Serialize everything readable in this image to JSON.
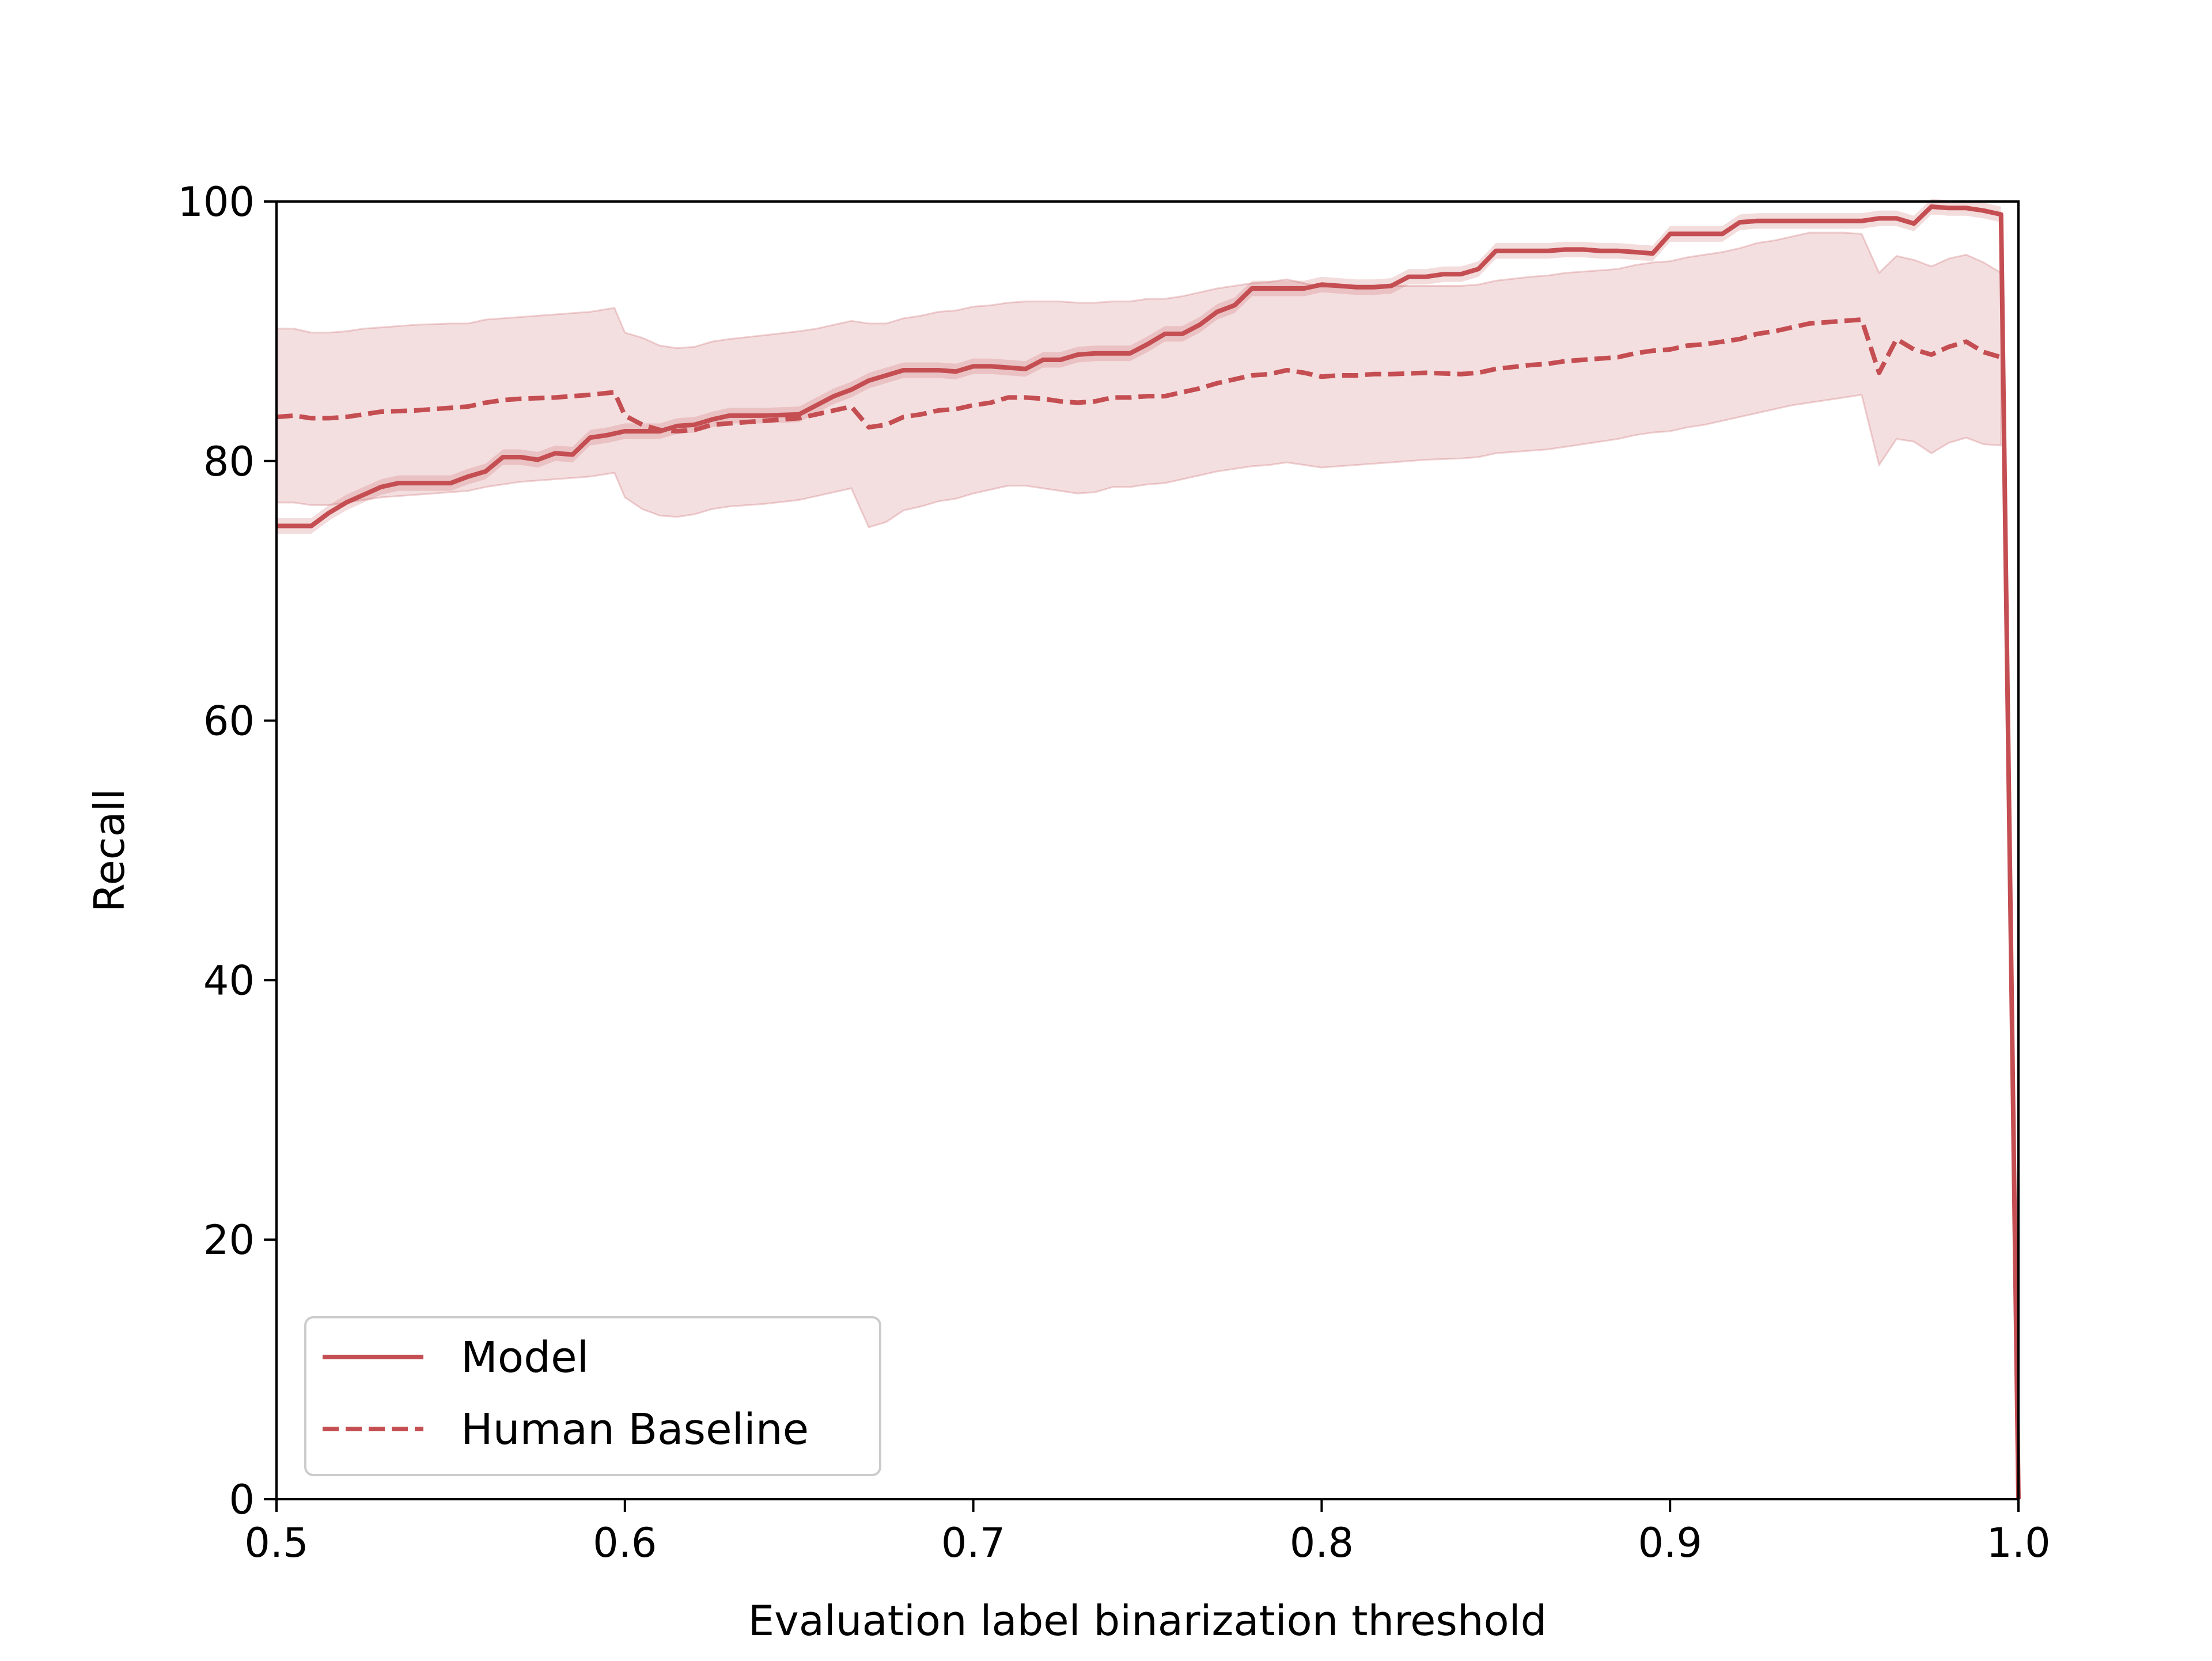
{
  "colors": {
    "series": "#c44e52",
    "band": "#c44e52",
    "axis": "#000000",
    "legend_border": "#cccccc",
    "background": "#ffffff"
  },
  "chart_data": {
    "type": "line",
    "title": "",
    "xlabel": "Evaluation label binarization threshold",
    "ylabel": "Recall",
    "xlim": [
      0.5,
      1.0
    ],
    "ylim": [
      0,
      100
    ],
    "xticks": [
      "0.5",
      "0.6",
      "0.7",
      "0.8",
      "0.9",
      "1.0"
    ],
    "yticks": [
      "0",
      "20",
      "40",
      "60",
      "80",
      "100"
    ],
    "grid": false,
    "legend_position": "lower-left",
    "series": [
      {
        "name": "Model",
        "line_style": "solid",
        "x": [
          0.5,
          0.51,
          0.515,
          0.52,
          0.53,
          0.535,
          0.54,
          0.55,
          0.555,
          0.56,
          0.565,
          0.57,
          0.575,
          0.58,
          0.585,
          0.59,
          0.595,
          0.6,
          0.605,
          0.61,
          0.615,
          0.62,
          0.625,
          0.63,
          0.64,
          0.65,
          0.655,
          0.66,
          0.665,
          0.67,
          0.68,
          0.69,
          0.695,
          0.7,
          0.705,
          0.71,
          0.715,
          0.72,
          0.725,
          0.73,
          0.735,
          0.74,
          0.745,
          0.75,
          0.755,
          0.76,
          0.765,
          0.77,
          0.775,
          0.78,
          0.785,
          0.79,
          0.795,
          0.8,
          0.805,
          0.81,
          0.815,
          0.82,
          0.825,
          0.83,
          0.835,
          0.84,
          0.845,
          0.85,
          0.86,
          0.865,
          0.87,
          0.875,
          0.88,
          0.885,
          0.89,
          0.895,
          0.9,
          0.905,
          0.91,
          0.915,
          0.92,
          0.925,
          0.93,
          0.935,
          0.94,
          0.945,
          0.95,
          0.955,
          0.96,
          0.965,
          0.97,
          0.975,
          0.98,
          0.985,
          0.99,
          0.995,
          1.0
        ],
        "y": [
          75.0,
          75.0,
          76.0,
          76.8,
          78.0,
          78.3,
          78.3,
          78.3,
          78.8,
          79.2,
          80.3,
          80.3,
          80.1,
          80.6,
          80.5,
          81.8,
          82.0,
          82.3,
          82.3,
          82.3,
          82.7,
          82.8,
          83.2,
          83.5,
          83.5,
          83.6,
          84.3,
          85.0,
          85.5,
          86.2,
          87.0,
          87.0,
          86.9,
          87.3,
          87.3,
          87.2,
          87.1,
          87.8,
          87.8,
          88.2,
          88.3,
          88.3,
          88.3,
          89.0,
          89.8,
          89.8,
          90.5,
          91.5,
          92.0,
          93.3,
          93.3,
          93.3,
          93.3,
          93.6,
          93.5,
          93.4,
          93.4,
          93.5,
          94.2,
          94.2,
          94.4,
          94.4,
          94.8,
          96.2,
          96.2,
          96.2,
          96.3,
          96.3,
          96.2,
          96.2,
          96.1,
          96.0,
          97.5,
          97.5,
          97.5,
          97.5,
          98.4,
          98.5,
          98.5,
          98.5,
          98.5,
          98.5,
          98.5,
          98.5,
          98.7,
          98.7,
          98.3,
          99.6,
          99.5,
          99.5,
          99.3,
          99.0,
          0.0
        ]
      },
      {
        "name": "Human Baseline",
        "line_style": "dashed",
        "x": [
          0.5,
          0.505,
          0.51,
          0.515,
          0.52,
          0.525,
          0.53,
          0.54,
          0.55,
          0.555,
          0.56,
          0.565,
          0.57,
          0.58,
          0.59,
          0.597,
          0.6,
          0.605,
          0.61,
          0.615,
          0.62,
          0.625,
          0.63,
          0.64,
          0.65,
          0.655,
          0.66,
          0.665,
          0.67,
          0.675,
          0.68,
          0.685,
          0.69,
          0.695,
          0.7,
          0.705,
          0.71,
          0.715,
          0.72,
          0.725,
          0.73,
          0.735,
          0.74,
          0.745,
          0.75,
          0.755,
          0.76,
          0.765,
          0.77,
          0.775,
          0.78,
          0.785,
          0.79,
          0.795,
          0.8,
          0.805,
          0.81,
          0.815,
          0.82,
          0.83,
          0.84,
          0.845,
          0.85,
          0.86,
          0.865,
          0.87,
          0.875,
          0.88,
          0.885,
          0.89,
          0.895,
          0.9,
          0.905,
          0.91,
          0.915,
          0.92,
          0.925,
          0.93,
          0.935,
          0.94,
          0.945,
          0.95,
          0.955,
          0.96,
          0.965,
          0.97,
          0.975,
          0.98,
          0.985,
          0.99,
          0.995
        ],
        "y": [
          83.4,
          83.5,
          83.3,
          83.3,
          83.4,
          83.6,
          83.8,
          83.9,
          84.1,
          84.2,
          84.5,
          84.7,
          84.8,
          84.9,
          85.1,
          85.3,
          83.5,
          82.8,
          82.4,
          82.3,
          82.4,
          82.8,
          82.9,
          83.1,
          83.3,
          83.6,
          83.9,
          84.2,
          82.6,
          82.8,
          83.4,
          83.6,
          83.9,
          84.0,
          84.3,
          84.5,
          84.9,
          84.9,
          84.8,
          84.6,
          84.5,
          84.6,
          84.9,
          84.9,
          85.0,
          85.0,
          85.3,
          85.6,
          86.0,
          86.3,
          86.6,
          86.7,
          87.0,
          86.8,
          86.5,
          86.6,
          86.6,
          86.7,
          86.7,
          86.8,
          86.7,
          86.8,
          87.1,
          87.4,
          87.5,
          87.7,
          87.8,
          87.9,
          88.0,
          88.3,
          88.5,
          88.6,
          88.9,
          89.0,
          89.2,
          89.4,
          89.8,
          90.0,
          90.3,
          90.6,
          90.7,
          90.8,
          90.9,
          86.8,
          89.4,
          88.6,
          88.2,
          88.8,
          89.2,
          88.4,
          88.0
        ],
        "band_upper": [
          90.2,
          90.2,
          89.9,
          89.9,
          90.0,
          90.2,
          90.3,
          90.5,
          90.6,
          90.6,
          90.9,
          91.0,
          91.1,
          91.3,
          91.5,
          91.8,
          89.9,
          89.5,
          88.9,
          88.7,
          88.8,
          89.2,
          89.4,
          89.7,
          90.0,
          90.2,
          90.5,
          90.8,
          90.6,
          90.6,
          91.0,
          91.2,
          91.5,
          91.6,
          91.9,
          92.0,
          92.2,
          92.3,
          92.3,
          92.3,
          92.2,
          92.2,
          92.3,
          92.3,
          92.5,
          92.5,
          92.7,
          93.0,
          93.3,
          93.5,
          93.7,
          93.8,
          94.0,
          93.7,
          93.4,
          93.4,
          93.4,
          93.5,
          93.5,
          93.5,
          93.5,
          93.6,
          93.9,
          94.2,
          94.3,
          94.5,
          94.6,
          94.7,
          94.8,
          95.1,
          95.3,
          95.4,
          95.7,
          95.9,
          96.1,
          96.4,
          96.8,
          97.0,
          97.3,
          97.6,
          97.6,
          97.6,
          97.5,
          94.5,
          95.8,
          95.5,
          95.0,
          95.6,
          95.9,
          95.3,
          94.5
        ],
        "band_lower": [
          76.8,
          76.8,
          76.6,
          76.6,
          76.8,
          77.0,
          77.2,
          77.4,
          77.6,
          77.7,
          78.0,
          78.2,
          78.4,
          78.6,
          78.8,
          79.1,
          77.2,
          76.3,
          75.8,
          75.7,
          75.9,
          76.3,
          76.5,
          76.7,
          77.0,
          77.3,
          77.6,
          77.9,
          74.9,
          75.3,
          76.2,
          76.5,
          76.9,
          77.1,
          77.5,
          77.8,
          78.1,
          78.1,
          77.9,
          77.7,
          77.5,
          77.6,
          78.0,
          78.0,
          78.2,
          78.3,
          78.6,
          78.9,
          79.2,
          79.4,
          79.6,
          79.7,
          79.9,
          79.7,
          79.5,
          79.6,
          79.7,
          79.8,
          79.9,
          80.1,
          80.2,
          80.3,
          80.6,
          80.8,
          80.9,
          81.1,
          81.3,
          81.5,
          81.7,
          82.0,
          82.2,
          82.3,
          82.6,
          82.8,
          83.1,
          83.4,
          83.7,
          84.0,
          84.3,
          84.5,
          84.7,
          84.9,
          85.1,
          79.7,
          81.7,
          81.5,
          80.6,
          81.4,
          81.8,
          81.3,
          81.2
        ]
      }
    ]
  }
}
